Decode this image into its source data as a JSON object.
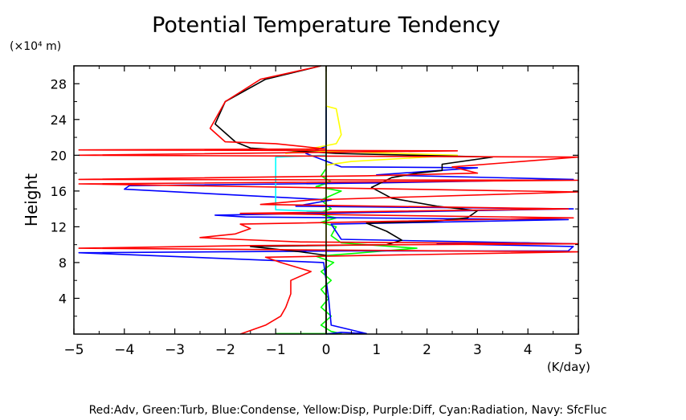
{
  "chart_data": {
    "type": "line",
    "title": "Potential Temperature Tendency",
    "ylabel": "Height",
    "yunit": "(×10⁴ m)",
    "xunit": "(K/day)",
    "legend_text": "Red:Adv, Green:Turb, Blue:Condense, Yellow:Disp, Purple:Diff, Cyan:Radiation, Navy: SfcFluc",
    "xlim": [
      -5,
      5
    ],
    "ylim": [
      0,
      30
    ],
    "xticks": [
      -5,
      -4,
      -3,
      -2,
      -1,
      0,
      1,
      2,
      3,
      4,
      5
    ],
    "xtick_labels": [
      "−5",
      "−4",
      "−3",
      "−2",
      "−1",
      "0",
      "1",
      "2",
      "3",
      "4",
      "5"
    ],
    "yticks": [
      4,
      8,
      12,
      16,
      20,
      24,
      28
    ],
    "ytick_labels": [
      "4",
      "8",
      "12",
      "16",
      "20",
      "24",
      "28"
    ],
    "series": [
      {
        "color": "#00ff00",
        "points": [
          [
            -1.0,
            0.05
          ],
          [
            0.3,
            0.05
          ],
          [
            0.1,
            0.3
          ],
          [
            -0.1,
            1
          ],
          [
            0.1,
            2
          ],
          [
            -0.1,
            3
          ],
          [
            0.05,
            4
          ],
          [
            -0.1,
            5
          ],
          [
            0.1,
            6
          ],
          [
            -0.1,
            7
          ],
          [
            0.15,
            8
          ],
          [
            -0.2,
            8.7
          ],
          [
            0.5,
            9.0
          ],
          [
            1.8,
            9.6
          ],
          [
            0.3,
            10.2
          ],
          [
            0.1,
            11
          ],
          [
            0.2,
            12
          ],
          [
            -0.1,
            12.5
          ],
          [
            0.2,
            13
          ],
          [
            -0.2,
            13.5
          ],
          [
            0.1,
            14
          ],
          [
            -0.1,
            15
          ],
          [
            0.3,
            16
          ],
          [
            -0.2,
            16.5
          ],
          [
            0.1,
            17
          ],
          [
            -0.1,
            17.7
          ],
          [
            0.0,
            18.5
          ],
          [
            0.0,
            30
          ]
        ]
      },
      {
        "color": "#0000ff",
        "points": [
          [
            0.0,
            0
          ],
          [
            0.3,
            0.2
          ],
          [
            0.8,
            0.05
          ],
          [
            0.1,
            1
          ],
          [
            0.05,
            4
          ],
          [
            -0.05,
            8
          ],
          [
            -4.9,
            9.1
          ],
          [
            0.5,
            9.3
          ],
          [
            4.8,
            9.3
          ],
          [
            4.9,
            9.8
          ],
          [
            2.2,
            10.1
          ],
          [
            4.0,
            10.2
          ],
          [
            4.9,
            10.1
          ],
          [
            0.3,
            10.6
          ],
          [
            0.1,
            12.3
          ],
          [
            4.8,
            12.8
          ],
          [
            -1.6,
            13.1
          ],
          [
            -2.2,
            13.3
          ],
          [
            4.9,
            14.0
          ],
          [
            -0.6,
            14.3
          ],
          [
            0.1,
            15
          ],
          [
            -4.0,
            16.2
          ],
          [
            -3.9,
            16.6
          ],
          [
            1.0,
            16.9
          ],
          [
            4.9,
            17.3
          ],
          [
            1.0,
            17.8
          ],
          [
            3.0,
            18.6
          ],
          [
            0.3,
            18.7
          ],
          [
            -0.4,
            20.2
          ],
          [
            0.0,
            21
          ],
          [
            0.0,
            30
          ]
        ]
      },
      {
        "color": "#ffff00",
        "points": [
          [
            0,
            0
          ],
          [
            0,
            18.9
          ],
          [
            0.5,
            19.3
          ],
          [
            2.6,
            20.0
          ],
          [
            -0.3,
            20.5
          ],
          [
            -0.8,
            20.2
          ],
          [
            0.2,
            21.3
          ],
          [
            0.3,
            22.3
          ],
          [
            0.2,
            25.2
          ],
          [
            0,
            25.5
          ],
          [
            0,
            30
          ]
        ]
      },
      {
        "color": "#00ffff",
        "points": [
          [
            0,
            13.7
          ],
          [
            -1.0,
            13.9
          ],
          [
            -1.0,
            19.8
          ],
          [
            0,
            20.0
          ]
        ]
      },
      {
        "color": "#000000",
        "points": [
          [
            0,
            0
          ],
          [
            0,
            8.8
          ],
          [
            -0.5,
            9.2
          ],
          [
            -1.5,
            9.8
          ],
          [
            1.2,
            10.0
          ],
          [
            1.5,
            10.5
          ],
          [
            1.2,
            11.5
          ],
          [
            0.8,
            12.4
          ],
          [
            2.1,
            12.6
          ],
          [
            2.8,
            13.0
          ],
          [
            3.0,
            13.8
          ],
          [
            2.2,
            14.3
          ],
          [
            1.3,
            15.2
          ],
          [
            0.9,
            16.4
          ],
          [
            1.3,
            17.5
          ],
          [
            1.8,
            18.0
          ],
          [
            2.3,
            18.3
          ],
          [
            2.3,
            19.0
          ],
          [
            3.3,
            19.8
          ],
          [
            0.2,
            20.2
          ],
          [
            -1.5,
            20.8
          ],
          [
            -1.8,
            21.5
          ],
          [
            -2.2,
            23.5
          ],
          [
            -2.0,
            26.0
          ],
          [
            -1.2,
            28.5
          ],
          [
            -0.1,
            30
          ]
        ]
      },
      {
        "color": "#ff0000",
        "points": [
          [
            -1.7,
            0
          ],
          [
            -1.2,
            1.0
          ],
          [
            -0.9,
            2.0
          ],
          [
            -0.8,
            3.0
          ],
          [
            -0.7,
            4.5
          ],
          [
            -0.7,
            6.0
          ],
          [
            -0.3,
            7.0
          ],
          [
            -0.9,
            8.0
          ],
          [
            -1.2,
            8.6
          ],
          [
            5.0,
            9.2
          ],
          [
            -4.9,
            9.6
          ],
          [
            -1.5,
            9.9
          ],
          [
            5.0,
            10.1
          ],
          [
            -0.5,
            10.3
          ],
          [
            -1.8,
            10.6
          ],
          [
            -2.5,
            10.8
          ],
          [
            -1.8,
            11.2
          ],
          [
            -1.5,
            11.8
          ],
          [
            -1.7,
            12.3
          ],
          [
            4.9,
            13.0
          ],
          [
            -1.7,
            13.5
          ],
          [
            4.8,
            14.0
          ],
          [
            -1.3,
            14.5
          ],
          [
            -0.3,
            15.0
          ],
          [
            5.0,
            15.9
          ],
          [
            -4.9,
            16.8
          ],
          [
            5.0,
            17.2
          ],
          [
            -4.9,
            17.3
          ],
          [
            0.8,
            17.7
          ],
          [
            3.0,
            18.0
          ],
          [
            2.5,
            18.7
          ],
          [
            5.0,
            19.8
          ],
          [
            -4.9,
            20.0
          ],
          [
            2.6,
            20.5
          ],
          [
            -4.9,
            20.6
          ],
          [
            0.0,
            20.7
          ],
          [
            -1.0,
            21.3
          ],
          [
            -2.0,
            21.5
          ],
          [
            -2.3,
            23.0
          ],
          [
            -2.0,
            26.0
          ],
          [
            -1.3,
            28.5
          ],
          [
            -0.1,
            30
          ]
        ]
      }
    ]
  }
}
